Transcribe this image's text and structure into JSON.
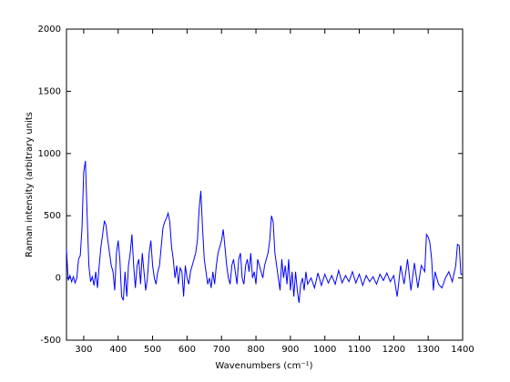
{
  "chart_data": {
    "type": "line",
    "xlabel": "Wavenumbers (cm⁻¹)",
    "ylabel": "Raman intensity (arbitrary units",
    "color": "#0000ff",
    "x": [
      250,
      255,
      260,
      265,
      270,
      275,
      280,
      285,
      290,
      295,
      300,
      305,
      310,
      315,
      320,
      325,
      330,
      335,
      340,
      345,
      350,
      355,
      360,
      365,
      370,
      375,
      380,
      385,
      390,
      395,
      400,
      405,
      410,
      415,
      420,
      425,
      430,
      435,
      440,
      445,
      450,
      455,
      460,
      465,
      470,
      475,
      480,
      485,
      490,
      495,
      500,
      505,
      510,
      515,
      520,
      525,
      530,
      535,
      540,
      545,
      550,
      555,
      560,
      565,
      570,
      575,
      580,
      585,
      590,
      595,
      600,
      605,
      610,
      615,
      620,
      625,
      630,
      635,
      640,
      645,
      650,
      655,
      660,
      665,
      670,
      675,
      680,
      685,
      690,
      695,
      700,
      705,
      710,
      715,
      720,
      725,
      730,
      735,
      740,
      745,
      750,
      755,
      760,
      765,
      770,
      775,
      780,
      785,
      790,
      795,
      800,
      805,
      810,
      815,
      820,
      825,
      830,
      835,
      840,
      845,
      850,
      855,
      860,
      865,
      870,
      875,
      880,
      885,
      890,
      895,
      900,
      905,
      910,
      915,
      920,
      925,
      930,
      935,
      940,
      945,
      950,
      960,
      970,
      980,
      990,
      1000,
      1010,
      1020,
      1030,
      1040,
      1050,
      1060,
      1070,
      1080,
      1090,
      1100,
      1110,
      1120,
      1130,
      1140,
      1150,
      1160,
      1170,
      1180,
      1190,
      1200,
      1210,
      1220,
      1230,
      1240,
      1250,
      1260,
      1270,
      1280,
      1290,
      1295,
      1300,
      1305,
      1310,
      1315,
      1320,
      1330,
      1340,
      1350,
      1360,
      1370,
      1380,
      1385,
      1390,
      1395,
      1400
    ],
    "values": [
      230,
      -20,
      20,
      -30,
      10,
      -40,
      0,
      150,
      180,
      400,
      850,
      940,
      500,
      100,
      -30,
      10,
      -60,
      50,
      -80,
      100,
      250,
      350,
      460,
      420,
      300,
      200,
      100,
      50,
      -100,
      200,
      300,
      150,
      -150,
      -180,
      50,
      -150,
      100,
      200,
      350,
      100,
      -80,
      100,
      150,
      -50,
      200,
      50,
      -100,
      0,
      200,
      300,
      100,
      0,
      -50,
      50,
      100,
      250,
      400,
      450,
      480,
      520,
      450,
      250,
      150,
      0,
      100,
      -50,
      80,
      50,
      -150,
      100,
      0,
      -50,
      50,
      100,
      150,
      200,
      300,
      550,
      700,
      400,
      150,
      50,
      -50,
      0,
      -80,
      50,
      -50,
      100,
      200,
      250,
      300,
      390,
      250,
      100,
      0,
      -50,
      100,
      150,
      50,
      -50,
      150,
      200,
      0,
      -50,
      100,
      150,
      50,
      200,
      0,
      50,
      -50,
      150,
      100,
      50,
      0,
      100,
      150,
      200,
      300,
      500,
      450,
      200,
      100,
      0,
      -100,
      150,
      0,
      100,
      -50,
      150,
      -100,
      50,
      -150,
      50,
      -100,
      -200,
      -50,
      0,
      -100,
      50,
      -50,
      0,
      -80,
      40,
      -60,
      30,
      -40,
      20,
      -50,
      60,
      -40,
      20,
      -30,
      50,
      -40,
      30,
      -60,
      20,
      -30,
      10,
      -50,
      30,
      -20,
      40,
      -30,
      20,
      -150,
      100,
      -50,
      150,
      -100,
      120,
      -80,
      100,
      50,
      350,
      330,
      280,
      150,
      -100,
      50,
      -50,
      -80,
      0,
      50,
      -30,
      100,
      270,
      260,
      30,
      30
    ],
    "xlim": [
      250,
      1400
    ],
    "xticks": [
      300,
      400,
      500,
      600,
      700,
      800,
      900,
      1000,
      1100,
      1200,
      1300,
      1400
    ],
    "ylim": [
      -500,
      2000
    ],
    "yticks": [
      -500,
      0,
      500,
      1000,
      1500,
      2000
    ]
  }
}
